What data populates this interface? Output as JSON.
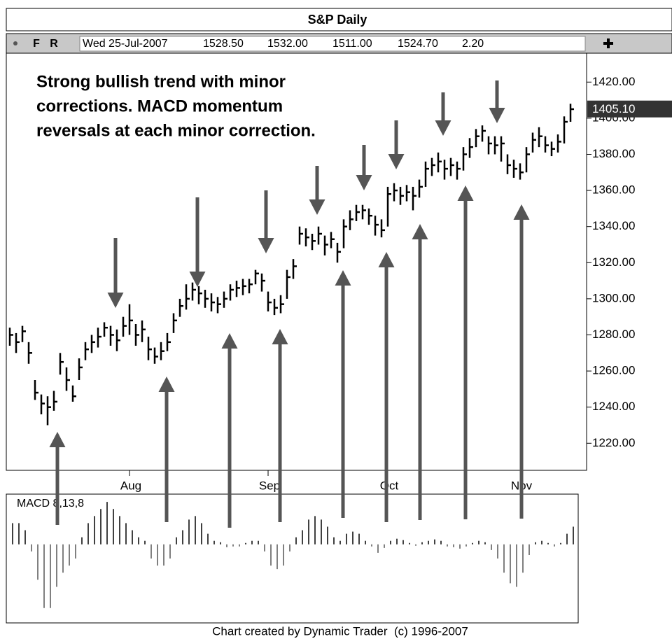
{
  "chart_data": [
    {
      "type": "ohlc",
      "title": "S&P Daily",
      "quote": [
        "Wed 25-Jul-2007",
        "1528.50",
        "1532.00",
        "1511.00",
        "1524.70",
        "2.20"
      ],
      "buttons": [
        "F",
        "R"
      ],
      "annotation": [
        "Strong bullish trend with minor",
        "corrections. MACD momentum",
        "reversals at each minor correction."
      ],
      "categories": [
        null,
        null,
        null,
        null,
        null,
        null,
        null,
        null,
        null,
        null,
        null,
        null,
        null,
        null,
        null,
        null,
        null,
        null,
        null,
        "Aug",
        null,
        null,
        null,
        null,
        null,
        null,
        null,
        null,
        null,
        null,
        null,
        null,
        null,
        null,
        null,
        null,
        null,
        null,
        null,
        null,
        null,
        "Sep",
        null,
        null,
        null,
        null,
        null,
        null,
        null,
        null,
        null,
        null,
        null,
        null,
        null,
        null,
        null,
        null,
        null,
        null,
        "Oct",
        null,
        null,
        null,
        null,
        null,
        null,
        null,
        null,
        null,
        null,
        null,
        null,
        null,
        null,
        null,
        null,
        null,
        null,
        null,
        null,
        "Nov",
        null,
        null,
        null,
        null,
        null,
        null,
        null,
        null
      ],
      "high": [
        1284,
        1281,
        1285,
        1276,
        1255,
        1247,
        1246,
        1249,
        1270,
        1262,
        1252,
        1267,
        1276,
        1280,
        1284,
        1287,
        1285,
        1283,
        1290,
        1297,
        1286,
        1288,
        1279,
        1273,
        1276,
        1281,
        1292,
        1300,
        1308,
        1309,
        1307,
        1305,
        1303,
        1301,
        1304,
        1308,
        1310,
        1311,
        1311,
        1316,
        1314,
        1304,
        1300,
        1302,
        1316,
        1322,
        1340,
        1339,
        1336,
        1340,
        1335,
        1337,
        1331,
        1344,
        1349,
        1352,
        1352,
        1350,
        1346,
        1344,
        1362,
        1364,
        1362,
        1363,
        1362,
        1366,
        1376,
        1378,
        1381,
        1377,
        1378,
        1376,
        1384,
        1389,
        1394,
        1396,
        1390,
        1390,
        1390,
        1380,
        1377,
        1375,
        1384,
        1392,
        1395,
        1390,
        1387,
        1391,
        1401,
        1408
      ],
      "low": [
        1274,
        1270,
        1276,
        1264,
        1244,
        1236,
        1230,
        1238,
        1258,
        1249,
        1243,
        1255,
        1266,
        1270,
        1273,
        1279,
        1274,
        1271,
        1279,
        1280,
        1274,
        1276,
        1266,
        1264,
        1266,
        1271,
        1281,
        1290,
        1294,
        1299,
        1297,
        1295,
        1293,
        1292,
        1295,
        1299,
        1301,
        1302,
        1303,
        1308,
        1304,
        1293,
        1291,
        1292,
        1300,
        1311,
        1330,
        1329,
        1327,
        1330,
        1324,
        1328,
        1320,
        1328,
        1338,
        1343,
        1344,
        1341,
        1335,
        1334,
        1340,
        1354,
        1352,
        1354,
        1349,
        1356,
        1362,
        1368,
        1370,
        1366,
        1368,
        1366,
        1371,
        1378,
        1384,
        1387,
        1380,
        1380,
        1376,
        1369,
        1367,
        1366,
        1370,
        1381,
        1384,
        1381,
        1379,
        1381,
        1386,
        1398
      ],
      "close": [
        1280,
        1276,
        1282,
        1270,
        1248,
        1242,
        1240,
        1243,
        1265,
        1255,
        1246,
        1262,
        1272,
        1276,
        1279,
        1284,
        1280,
        1277,
        1285,
        1288,
        1280,
        1283,
        1272,
        1268,
        1271,
        1276,
        1288,
        1296,
        1300,
        1305,
        1303,
        1300,
        1298,
        1297,
        1300,
        1305,
        1306,
        1307,
        1308,
        1314,
        1310,
        1298,
        1295,
        1297,
        1312,
        1318,
        1336,
        1334,
        1332,
        1336,
        1330,
        1333,
        1326,
        1340,
        1344,
        1348,
        1349,
        1346,
        1341,
        1338,
        1358,
        1360,
        1357,
        1359,
        1357,
        1362,
        1372,
        1374,
        1376,
        1372,
        1374,
        1372,
        1380,
        1384,
        1390,
        1393,
        1386,
        1385,
        1386,
        1374,
        1372,
        1370,
        1380,
        1388,
        1390,
        1385,
        1383,
        1387,
        1398,
        1405
      ],
      "last": {
        "value": 1405.1,
        "label": "1405.10"
      },
      "color": "#000000",
      "ylim": [
        1205,
        1436
      ],
      "yticks": [
        {
          "value": 1220,
          "label": "1220.00"
        },
        {
          "value": 1240,
          "label": "1240.00"
        },
        {
          "value": 1260,
          "label": "1260.00"
        },
        {
          "value": 1280,
          "label": "1280.00"
        },
        {
          "value": 1300,
          "label": "1300.00"
        },
        {
          "value": 1320,
          "label": "1320.00"
        },
        {
          "value": 1340,
          "label": "1340.00"
        },
        {
          "value": 1360,
          "label": "1360.00"
        },
        {
          "value": 1380,
          "label": "1380.00"
        },
        {
          "value": 1400,
          "label": "1400.00"
        },
        {
          "value": 1420,
          "label": "1420.00"
        }
      ]
    },
    {
      "type": "bar",
      "title": "MACD 8,13,8",
      "color": "#000000",
      "ylim": [
        -11,
        7
      ],
      "values": [
        3,
        3,
        2,
        -1,
        -5,
        -9,
        -9,
        -6,
        -4,
        -3,
        -2,
        1,
        3,
        4,
        5,
        6,
        5,
        4,
        3,
        2,
        1,
        0.5,
        -2,
        -3,
        -3,
        -2,
        1,
        2,
        3.5,
        4,
        3,
        1.5,
        0.5,
        0.3,
        -0.4,
        -0.3,
        -0.3,
        0.2,
        0.5,
        0.5,
        -1,
        -3,
        -3.5,
        -3,
        -1,
        1,
        2,
        3.5,
        4,
        3.5,
        2.5,
        1,
        0.5,
        1.5,
        1.8,
        1.5,
        0.5,
        -0.3,
        -1.2,
        -0.5,
        0.5,
        0.8,
        0.6,
        0.2,
        -0.2,
        0.3,
        0.5,
        0.7,
        0.5,
        -0.3,
        -0.4,
        -0.6,
        -0.3,
        0.2,
        0.5,
        0.3,
        -0.8,
        -2,
        -4,
        -5.5,
        -6,
        -4,
        -1.5,
        0.3,
        0.5,
        0.2,
        -0.3,
        0.2,
        1.5,
        2.5
      ]
    }
  ],
  "footer": "Chart created by Dynamic Trader  (c) 1996-2007"
}
